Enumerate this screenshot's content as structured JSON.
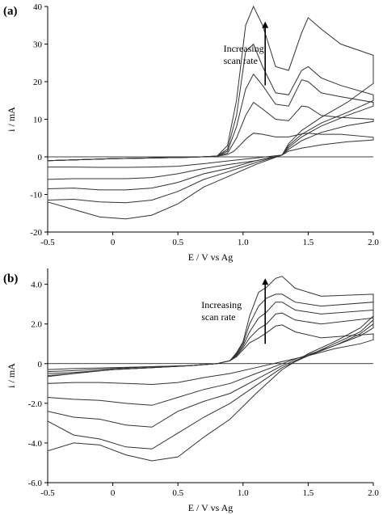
{
  "chart_data": [
    {
      "type": "line",
      "panel_label": "(a)",
      "xlabel": "E / V vs Ag",
      "ylabel": "i / mA",
      "xlim": [
        -0.5,
        2.0
      ],
      "ylim": [
        -20,
        40
      ],
      "xticks": [
        "-0.5",
        "0",
        "0.5",
        "1.0",
        "1.5",
        "2.0"
      ],
      "xtick_values": [
        -0.5,
        0,
        0.5,
        1.0,
        1.5,
        2.0
      ],
      "yticks": [
        "-20",
        "-10",
        "0",
        "10",
        "20",
        "30",
        "40"
      ],
      "ytick_values": [
        -20,
        -10,
        0,
        10,
        20,
        30,
        40
      ],
      "annotation": [
        "Increasing",
        "scan rate"
      ],
      "annotation_pos": [
        0.85,
        28
      ],
      "arrow": [
        1.17,
        19,
        1.17,
        36
      ],
      "series": [
        {
          "x": [
            -0.5,
            -0.3,
            0,
            0.3,
            0.6,
            0.8,
            0.88,
            0.93,
            0.98,
            1.03,
            1.08,
            1.15,
            1.25,
            1.35,
            1.45,
            1.5,
            1.6,
            1.75,
            2.0,
            2.0,
            1.8,
            1.6,
            1.45,
            1.35,
            1.3,
            1.1,
            0.9,
            0.7,
            0.5,
            0.3,
            0.1,
            -0.1,
            -0.3,
            -0.5
          ],
          "y": [
            -1,
            -0.8,
            -0.5,
            -0.3,
            -0.1,
            0.2,
            0.6,
            1.5,
            3.2,
            5,
            6.3,
            6,
            5.3,
            5.3,
            6.1,
            6.3,
            6,
            6,
            5.2,
            4.5,
            4,
            3.2,
            2.3,
            1.5,
            0.5,
            -0.3,
            -1,
            -1.8,
            -2.5,
            -2.7,
            -2.8,
            -2.8,
            -2.7,
            -2.7
          ]
        },
        {
          "x": [
            -0.5,
            -0.3,
            0,
            0.3,
            0.6,
            0.8,
            0.88,
            0.95,
            1.02,
            1.08,
            1.15,
            1.25,
            1.35,
            1.45,
            1.5,
            1.6,
            1.75,
            2.0,
            2.0,
            1.8,
            1.6,
            1.45,
            1.35,
            1.3,
            1.1,
            0.9,
            0.7,
            0.5,
            0.3,
            0.1,
            -0.1,
            -0.3,
            -0.5
          ],
          "y": [
            -1,
            -0.8,
            -0.5,
            -0.3,
            -0.1,
            0.2,
            1,
            5,
            11,
            14.5,
            12.7,
            10,
            9.6,
            13.5,
            13.3,
            11,
            10.5,
            10,
            9.4,
            8.3,
            6.5,
            4.3,
            2,
            0.5,
            -1,
            -2,
            -3.1,
            -4.5,
            -5.5,
            -5.8,
            -5.8,
            -5.8,
            -6
          ]
        },
        {
          "x": [
            -0.5,
            -0.3,
            0,
            0.3,
            0.6,
            0.8,
            0.88,
            0.95,
            1.02,
            1.08,
            1.15,
            1.25,
            1.35,
            1.45,
            1.5,
            1.6,
            1.75,
            2.0,
            2.0,
            1.8,
            1.6,
            1.45,
            1.35,
            1.3,
            1.1,
            0.9,
            0.7,
            0.5,
            0.3,
            0.1,
            -0.1,
            -0.3,
            -0.5
          ],
          "y": [
            -1,
            -0.8,
            -0.5,
            -0.3,
            -0.1,
            0.2,
            1.5,
            8,
            18,
            22,
            19,
            14,
            13.5,
            20.5,
            20,
            17,
            16,
            14.5,
            13.5,
            11,
            8.2,
            5.3,
            2.5,
            0.5,
            -1,
            -3,
            -4.5,
            -6.8,
            -8.3,
            -8.8,
            -8.8,
            -8.3,
            -8.5
          ]
        },
        {
          "x": [
            -0.5,
            -0.3,
            0,
            0.3,
            0.6,
            0.8,
            0.88,
            0.95,
            1.02,
            1.08,
            1.15,
            1.25,
            1.35,
            1.45,
            1.5,
            1.6,
            1.75,
            2.0,
            2.0,
            1.8,
            1.6,
            1.45,
            1.35,
            1.3,
            1.1,
            0.9,
            0.7,
            0.5,
            0.3,
            0.1,
            -0.1,
            -0.3,
            -0.5
          ],
          "y": [
            -1,
            -0.8,
            -0.5,
            -0.3,
            -0.1,
            0.2,
            2,
            11,
            28,
            30,
            24,
            17,
            16.5,
            23,
            24,
            21,
            19,
            16.5,
            15,
            11.8,
            9,
            6,
            3,
            0.5,
            -1.5,
            -3.8,
            -6,
            -9.2,
            -11.5,
            -12.2,
            -12,
            -11.3,
            -11.5
          ]
        },
        {
          "x": [
            -0.5,
            -0.3,
            0,
            0.3,
            0.6,
            0.8,
            0.88,
            0.95,
            1.02,
            1.08,
            1.15,
            1.25,
            1.35,
            1.45,
            1.5,
            1.6,
            1.75,
            2.0,
            2.0,
            1.8,
            1.6,
            1.45,
            1.35,
            1.3,
            1.1,
            0.9,
            0.7,
            0.5,
            0.3,
            0.1,
            -0.1,
            -0.3,
            -0.5
          ],
          "y": [
            -1,
            -0.8,
            -0.5,
            -0.3,
            -0.1,
            0.2,
            3,
            15,
            35,
            40,
            35,
            24,
            23,
            33,
            37,
            34,
            30,
            27,
            19.5,
            14.5,
            10.5,
            7,
            3.5,
            0.5,
            -2,
            -5,
            -8,
            -12.5,
            -15.5,
            -16.5,
            -16,
            -14,
            -12
          ]
        }
      ]
    },
    {
      "type": "line",
      "panel_label": "(b)",
      "xlabel": "E / V vs Ag",
      "ylabel": "i / mA",
      "xlim": [
        -0.5,
        2.0
      ],
      "ylim": [
        -6.0,
        4.8
      ],
      "xticks": [
        "-0.5",
        "0",
        "0.5",
        "1.0",
        "1.5",
        "2.0"
      ],
      "xtick_values": [
        -0.5,
        0,
        0.5,
        1.0,
        1.5,
        2.0
      ],
      "yticks": [
        "-6.0",
        "-4.0",
        "-2.0",
        "0",
        "2.0",
        "4.0"
      ],
      "ytick_values": [
        -6,
        -4,
        -2,
        0,
        2,
        4
      ],
      "annotation": [
        "Increasing",
        "scan rate"
      ],
      "annotation_pos": [
        0.68,
        2.8
      ],
      "arrow": [
        1.17,
        1.0,
        1.17,
        4.3
      ],
      "series": [
        {
          "x": [
            -0.5,
            -0.3,
            0,
            0.3,
            0.6,
            0.8,
            0.9,
            0.95,
            1.0,
            1.05,
            1.12,
            1.18,
            1.25,
            1.3,
            1.4,
            1.6,
            2.0,
            2.0,
            1.9,
            1.7,
            1.5,
            1.3,
            1.1,
            0.9,
            0.7,
            0.5,
            0.3,
            0.1,
            -0.1,
            -0.3,
            -0.5
          ],
          "y": [
            -0.65,
            -0.5,
            -0.3,
            -0.2,
            -0.1,
            0,
            0.15,
            0.35,
            0.7,
            1.05,
            1.3,
            1.55,
            1.9,
            1.95,
            1.6,
            1.3,
            1.5,
            1.2,
            1.0,
            0.75,
            0.4,
            0.1,
            -0.2,
            -0.5,
            -0.7,
            -0.95,
            -1.05,
            -1.0,
            -0.95,
            -0.95,
            -1.0
          ]
        },
        {
          "x": [
            -0.5,
            -0.3,
            0,
            0.3,
            0.6,
            0.8,
            0.9,
            0.95,
            1.0,
            1.05,
            1.12,
            1.18,
            1.25,
            1.3,
            1.4,
            1.6,
            2.0,
            2.0,
            1.9,
            1.7,
            1.5,
            1.3,
            1.1,
            0.9,
            0.7,
            0.5,
            0.3,
            0.1,
            -0.1,
            -0.3,
            -0.5
          ],
          "y": [
            -0.6,
            -0.5,
            -0.3,
            -0.2,
            -0.1,
            0,
            0.15,
            0.4,
            0.8,
            1.3,
            1.75,
            2.0,
            2.5,
            2.55,
            2.2,
            2.0,
            2.3,
            1.8,
            1.4,
            0.9,
            0.45,
            0,
            -0.5,
            -1.0,
            -1.3,
            -1.7,
            -2.1,
            -2.0,
            -1.85,
            -1.8,
            -1.7
          ]
        },
        {
          "x": [
            -0.5,
            -0.3,
            0,
            0.3,
            0.6,
            0.8,
            0.9,
            0.95,
            1.0,
            1.05,
            1.12,
            1.18,
            1.25,
            1.3,
            1.4,
            1.6,
            2.0,
            2.0,
            1.9,
            1.7,
            1.5,
            1.3,
            1.1,
            0.9,
            0.7,
            0.5,
            0.3,
            0.1,
            -0.1,
            -0.3,
            -0.5
          ],
          "y": [
            -0.5,
            -0.45,
            -0.3,
            -0.2,
            -0.1,
            0,
            0.15,
            0.45,
            0.9,
            1.6,
            2.3,
            2.6,
            3.1,
            3.1,
            2.7,
            2.5,
            2.7,
            2.0,
            1.5,
            0.9,
            0.4,
            -0.1,
            -0.8,
            -1.5,
            -1.9,
            -2.4,
            -3.2,
            -3.1,
            -2.8,
            -2.7,
            -2.4
          ]
        },
        {
          "x": [
            -0.5,
            -0.3,
            0,
            0.3,
            0.6,
            0.8,
            0.9,
            0.95,
            1.0,
            1.05,
            1.12,
            1.18,
            1.25,
            1.3,
            1.4,
            1.6,
            2.0,
            2.0,
            1.9,
            1.7,
            1.5,
            1.3,
            1.1,
            0.9,
            0.7,
            0.5,
            0.3,
            0.1,
            -0.1,
            -0.3,
            -0.5
          ],
          "y": [
            -0.4,
            -0.35,
            -0.25,
            -0.15,
            -0.1,
            0,
            0.15,
            0.5,
            1.0,
            2.0,
            2.9,
            3.3,
            3.5,
            3.5,
            3.1,
            2.9,
            3.1,
            2.2,
            1.6,
            1.0,
            0.4,
            -0.2,
            -1.1,
            -2.0,
            -2.7,
            -3.5,
            -4.3,
            -4.2,
            -3.8,
            -3.6,
            -2.9
          ]
        },
        {
          "x": [
            -0.5,
            -0.3,
            0,
            0.3,
            0.6,
            0.8,
            0.9,
            0.95,
            1.0,
            1.05,
            1.12,
            1.18,
            1.25,
            1.3,
            1.4,
            1.6,
            2.0,
            2.0,
            1.9,
            1.7,
            1.5,
            1.3,
            1.1,
            0.9,
            0.7,
            0.5,
            0.3,
            0.1,
            -0.1,
            -0.3,
            -0.5
          ],
          "y": [
            -0.3,
            -0.25,
            -0.2,
            -0.15,
            -0.1,
            0,
            0.15,
            0.55,
            1.1,
            2.4,
            3.6,
            3.85,
            4.3,
            4.4,
            3.8,
            3.4,
            3.5,
            2.4,
            1.8,
            1.1,
            0.5,
            -0.3,
            -1.5,
            -2.8,
            -3.7,
            -4.7,
            -4.9,
            -4.6,
            -4.1,
            -4.0,
            -4.4
          ]
        }
      ]
    }
  ]
}
